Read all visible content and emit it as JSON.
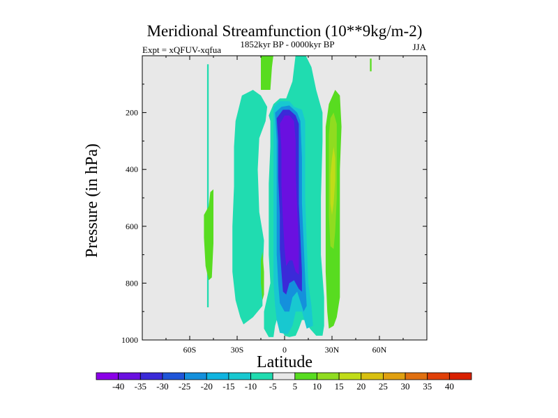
{
  "chart_data": {
    "type": "heatmap",
    "title": "Meridional Streamfunction (10**9kg/m-2)",
    "left_string": "Expt = xQFUV-xqfua",
    "center_string": "1852kyr BP - 0000kyr BP",
    "right_string": "JJA",
    "xlabel": "Latitude",
    "ylabel": "Pressure (in hPa)",
    "xlim": [
      -90,
      90
    ],
    "ylim": [
      1000,
      0
    ],
    "x_ticks": [
      {
        "value": -60,
        "label": "60S"
      },
      {
        "value": -30,
        "label": "30S"
      },
      {
        "value": 0,
        "label": "0"
      },
      {
        "value": 30,
        "label": "30N"
      },
      {
        "value": 60,
        "label": "60N"
      }
    ],
    "y_ticks": [
      {
        "value": 200,
        "label": "200"
      },
      {
        "value": 400,
        "label": "400"
      },
      {
        "value": 600,
        "label": "600"
      },
      {
        "value": 800,
        "label": "800"
      },
      {
        "value": 1000,
        "label": "1000"
      }
    ],
    "colorbar": {
      "labels": [
        "-40",
        "-35",
        "-30",
        "-25",
        "-20",
        "-15",
        "-10",
        "-5",
        "5",
        "10",
        "15",
        "20",
        "25",
        "30",
        "35",
        "40"
      ],
      "colors": [
        "#8b00e8",
        "#6a10e0",
        "#3b2ad8",
        "#1f55d8",
        "#1490dc",
        "#10b4e0",
        "#18c8d0",
        "#20dcb0",
        "#e8e8e8",
        "#58dc20",
        "#90dc20",
        "#c0dc18",
        "#d8c010",
        "#e0a010",
        "#e07010",
        "#e04008",
        "#d82000"
      ]
    },
    "contour_regions": [
      {
        "level": "-5",
        "points": [
          [
            -49,
            30
          ],
          [
            -48,
            30
          ],
          [
            -48,
            885
          ],
          [
            -49,
            885
          ]
        ]
      },
      {
        "level": "-5",
        "points": [
          [
            -20,
            120
          ],
          [
            -15,
            140
          ],
          [
            -11,
            180
          ],
          [
            -12,
            230
          ],
          [
            -16,
            290
          ],
          [
            -17,
            400
          ],
          [
            -16,
            550
          ],
          [
            -13,
            650
          ],
          [
            -14,
            780
          ],
          [
            -14,
            880
          ],
          [
            -20,
            920
          ],
          [
            -26,
            945
          ],
          [
            -28,
            920
          ],
          [
            -31,
            860
          ],
          [
            -33,
            760
          ],
          [
            -33,
            600
          ],
          [
            -32,
            460
          ],
          [
            -32,
            320
          ],
          [
            -31,
            230
          ],
          [
            -27,
            140
          ]
        ]
      },
      {
        "level": "5",
        "points": [
          [
            -50,
            90
          ],
          [
            -50,
            100
          ],
          [
            -50,
            100
          ]
        ]
      },
      {
        "level": "-5",
        "points": [
          [
            -10,
            210
          ],
          [
            -9,
            230
          ],
          [
            -9,
            320
          ],
          [
            -10,
            450
          ],
          [
            -10,
            600
          ],
          [
            -10,
            700
          ],
          [
            -9,
            800
          ],
          [
            -11,
            850
          ],
          [
            -13,
            900
          ],
          [
            -13,
            960
          ],
          [
            -10,
            990
          ],
          [
            -7,
            990
          ],
          [
            -6,
            950
          ],
          [
            -5,
            930
          ],
          [
            -3,
            950
          ],
          [
            0,
            985
          ],
          [
            3,
            990
          ],
          [
            7,
            985
          ],
          [
            9,
            960
          ],
          [
            11,
            930
          ],
          [
            13,
            930
          ],
          [
            16,
            960
          ],
          [
            20,
            985
          ],
          [
            24,
            985
          ],
          [
            25,
            950
          ],
          [
            25,
            850
          ],
          [
            23,
            700
          ],
          [
            23,
            500
          ],
          [
            24,
            300
          ],
          [
            24,
            200
          ],
          [
            20,
            120
          ],
          [
            17,
            40
          ],
          [
            13,
            -5
          ],
          [
            7,
            -5
          ],
          [
            5,
            90
          ],
          [
            1,
            150
          ],
          [
            -3,
            150
          ],
          [
            -7,
            170
          ]
        ]
      },
      {
        "level": "-10",
        "points": [
          [
            -7,
            180
          ],
          [
            -3,
            160
          ],
          [
            3,
            160
          ],
          [
            6,
            180
          ],
          [
            11,
            190
          ],
          [
            13,
            230
          ],
          [
            13,
            360
          ],
          [
            13,
            500
          ],
          [
            14,
            650
          ],
          [
            15,
            800
          ],
          [
            17,
            880
          ],
          [
            18,
            950
          ],
          [
            14,
            960
          ],
          [
            11,
            900
          ],
          [
            7,
            900
          ],
          [
            5,
            950
          ],
          [
            2,
            980
          ],
          [
            -3,
            975
          ],
          [
            -5,
            930
          ],
          [
            -6,
            880
          ],
          [
            -7,
            800
          ],
          [
            -7,
            700
          ],
          [
            -7,
            550
          ],
          [
            -7,
            420
          ],
          [
            -7,
            300
          ]
        ]
      },
      {
        "level": "-20",
        "points": [
          [
            -6,
            200
          ],
          [
            -2,
            180
          ],
          [
            3,
            175
          ],
          [
            8,
            200
          ],
          [
            10,
            230
          ],
          [
            11,
            360
          ],
          [
            11,
            520
          ],
          [
            12,
            650
          ],
          [
            13,
            780
          ],
          [
            14,
            880
          ],
          [
            12,
            900
          ],
          [
            8,
            830
          ],
          [
            5,
            850
          ],
          [
            3,
            900
          ],
          [
            0,
            900
          ],
          [
            -3,
            870
          ],
          [
            -4,
            800
          ],
          [
            -5,
            700
          ],
          [
            -5,
            550
          ],
          [
            -5,
            420
          ],
          [
            -5,
            300
          ]
        ]
      },
      {
        "level": "-30",
        "points": [
          [
            -5,
            220
          ],
          [
            -1,
            190
          ],
          [
            3,
            190
          ],
          [
            7,
            210
          ],
          [
            9,
            240
          ],
          [
            9,
            380
          ],
          [
            9,
            520
          ],
          [
            10,
            640
          ],
          [
            11,
            760
          ],
          [
            11,
            830
          ],
          [
            9,
            820
          ],
          [
            6,
            790
          ],
          [
            3,
            800
          ],
          [
            1,
            840
          ],
          [
            -1,
            830
          ],
          [
            -2,
            760
          ],
          [
            -3,
            680
          ],
          [
            -3,
            560
          ],
          [
            -4,
            430
          ],
          [
            -4,
            300
          ]
        ]
      },
      {
        "level": "-35",
        "points": [
          [
            -3,
            240
          ],
          [
            0,
            210
          ],
          [
            3,
            210
          ],
          [
            6,
            230
          ],
          [
            7,
            300
          ],
          [
            7,
            420
          ],
          [
            8,
            540
          ],
          [
            9,
            660
          ],
          [
            9,
            770
          ],
          [
            7,
            760
          ],
          [
            5,
            720
          ],
          [
            3,
            720
          ],
          [
            1,
            740
          ],
          [
            0,
            680
          ],
          [
            -1,
            580
          ],
          [
            -2,
            460
          ],
          [
            -2,
            330
          ]
        ]
      },
      {
        "level": "5",
        "points": [
          [
            -15,
            -5
          ],
          [
            -15,
            120
          ],
          [
            -9,
            120
          ],
          [
            -8,
            40
          ],
          [
            -7,
            -5
          ]
        ]
      },
      {
        "level": "5",
        "points": [
          [
            -48,
            530
          ],
          [
            -47,
            480
          ],
          [
            -45,
            470
          ],
          [
            -45,
            540
          ],
          [
            -45,
            660
          ],
          [
            -46,
            780
          ],
          [
            -48,
            790
          ],
          [
            -50,
            740
          ],
          [
            -51,
            640
          ],
          [
            -51,
            560
          ]
        ]
      },
      {
        "level": "5",
        "points": [
          [
            -15,
            720
          ],
          [
            -14,
            690
          ],
          [
            -13,
            760
          ],
          [
            -13,
            840
          ],
          [
            -14,
            860
          ],
          [
            -15,
            800
          ]
        ]
      },
      {
        "level": "5",
        "points": [
          [
            32,
            120
          ],
          [
            35,
            140
          ],
          [
            36,
            250
          ],
          [
            35,
            400
          ],
          [
            35,
            520
          ],
          [
            35,
            700
          ],
          [
            35,
            850
          ],
          [
            33,
            920
          ],
          [
            31,
            950
          ],
          [
            28,
            960
          ],
          [
            27,
            900
          ],
          [
            26,
            760
          ],
          [
            26,
            600
          ],
          [
            26,
            420
          ],
          [
            26,
            250
          ],
          [
            28,
            170
          ]
        ]
      },
      {
        "level": "10",
        "points": [
          [
            31,
            200
          ],
          [
            33,
            240
          ],
          [
            33,
            360
          ],
          [
            33,
            500
          ],
          [
            32,
            620
          ],
          [
            31,
            680
          ],
          [
            29,
            670
          ],
          [
            28,
            560
          ],
          [
            28,
            400
          ],
          [
            28,
            280
          ],
          [
            29,
            220
          ]
        ]
      },
      {
        "level": "15",
        "points": [
          [
            31,
            320
          ],
          [
            32,
            360
          ],
          [
            32,
            440
          ],
          [
            31,
            520
          ],
          [
            30,
            560
          ],
          [
            29,
            520
          ],
          [
            29,
            420
          ],
          [
            30,
            360
          ]
        ]
      },
      {
        "level": "5",
        "points": [
          [
            55,
            10
          ],
          [
            55,
            55
          ],
          [
            55,
            55
          ],
          [
            54,
            55
          ],
          [
            54,
            10
          ]
        ]
      }
    ]
  }
}
